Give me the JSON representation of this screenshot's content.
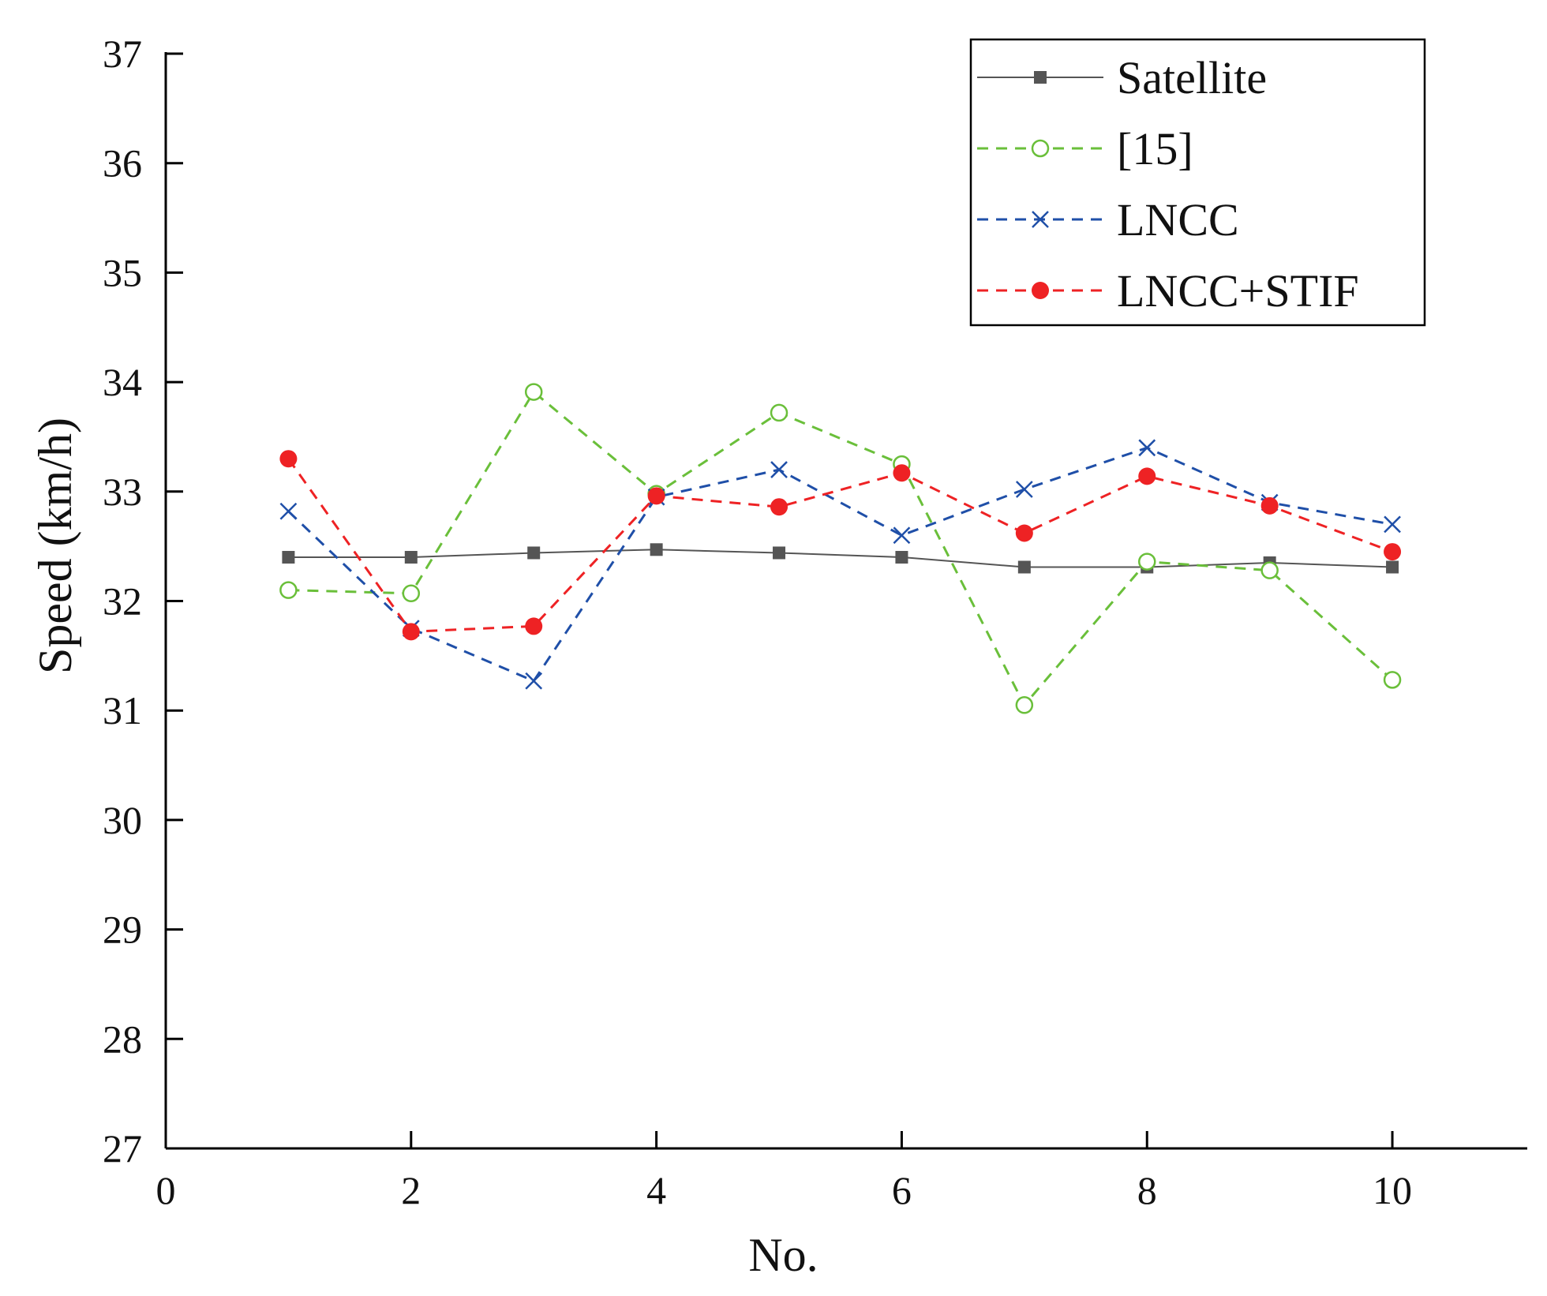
{
  "chart_data": {
    "type": "line",
    "title": "",
    "xlabel": "No.",
    "ylabel": "Speed (km/h)",
    "xlim": [
      0,
      11.1
    ],
    "ylim": [
      27,
      37
    ],
    "xticks": [
      0,
      2,
      4,
      6,
      8,
      10
    ],
    "yticks": [
      27,
      28,
      29,
      30,
      31,
      32,
      33,
      34,
      35,
      36,
      37
    ],
    "xtick_labels": [
      "0",
      "2",
      "4",
      "6",
      "8",
      "10"
    ],
    "ytick_labels": [
      "27",
      "28",
      "29",
      "30",
      "31",
      "32",
      "33",
      "34",
      "35",
      "36",
      "37"
    ],
    "grid": false,
    "legend_position": "top-right",
    "x": [
      1,
      2,
      3,
      4,
      5,
      6,
      7,
      8,
      9,
      10
    ],
    "series": [
      {
        "name": "Satellite",
        "color": "#555555",
        "line": "solid",
        "marker": "square",
        "values": [
          32.4,
          32.4,
          32.44,
          32.47,
          32.44,
          32.4,
          32.31,
          32.31,
          32.35,
          32.31
        ]
      },
      {
        "name": "[15]",
        "color": "#6abf3a",
        "line": "dashed",
        "marker": "open-circle",
        "values": [
          32.1,
          32.07,
          33.91,
          32.98,
          33.72,
          33.25,
          31.05,
          32.36,
          32.28,
          31.28
        ]
      },
      {
        "name": "LNCC",
        "color": "#1f4fa8",
        "line": "dashed",
        "marker": "x",
        "values": [
          32.82,
          31.75,
          31.27,
          32.95,
          33.2,
          32.6,
          33.02,
          33.4,
          32.9,
          32.7
        ]
      },
      {
        "name": "LNCC+STIF",
        "color": "#ee2224",
        "line": "dashed",
        "marker": "filled-circle",
        "values": [
          33.3,
          31.72,
          31.77,
          32.96,
          32.86,
          33.17,
          32.62,
          33.14,
          32.87,
          32.45
        ]
      }
    ]
  }
}
